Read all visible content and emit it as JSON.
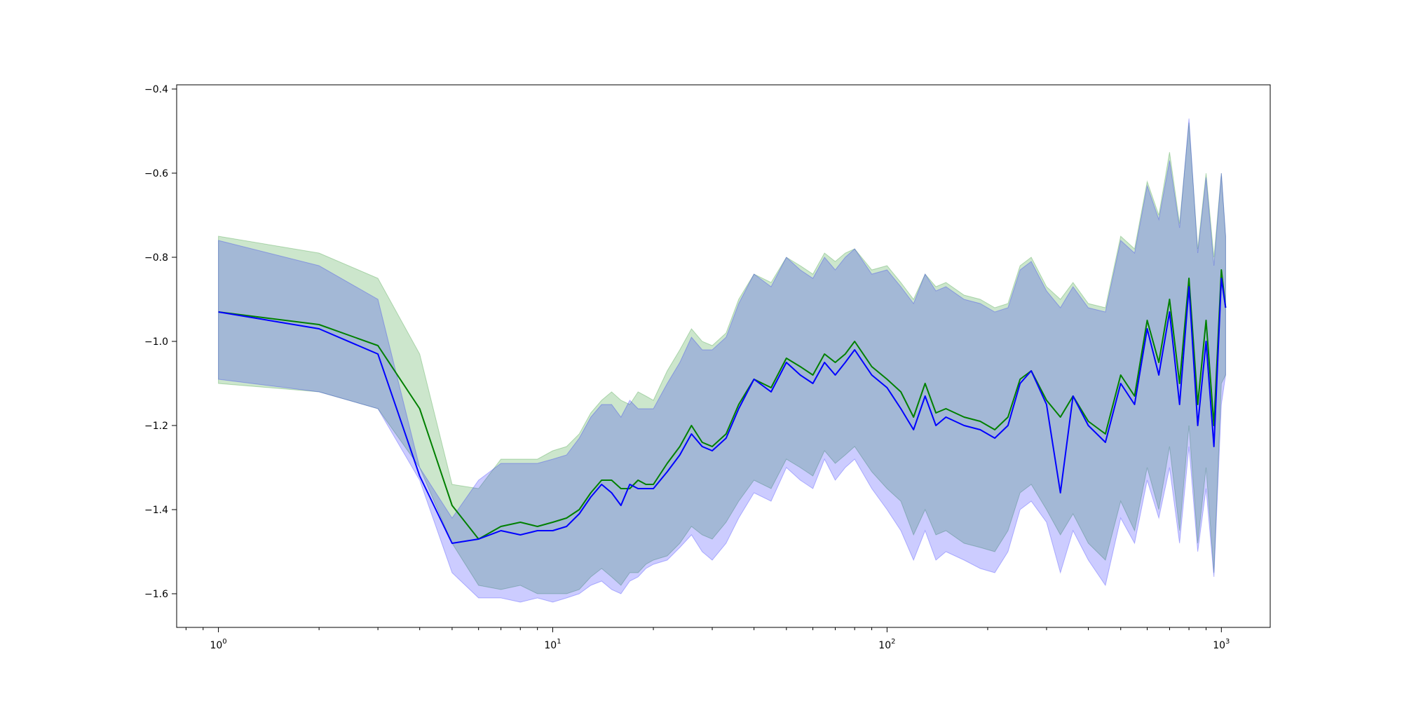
{
  "chart_data": {
    "type": "line",
    "title": "",
    "xlabel": "",
    "ylabel": "",
    "xscale": "log",
    "xlim": [
      0.75,
      1400
    ],
    "ylim": [
      -1.68,
      -0.39
    ],
    "grid": false,
    "legend": "none",
    "x_ticks": [
      {
        "value": 1,
        "base": "10",
        "exp": "0"
      },
      {
        "value": 10,
        "base": "10",
        "exp": "1"
      },
      {
        "value": 100,
        "base": "10",
        "exp": "2"
      },
      {
        "value": 1000,
        "base": "10",
        "exp": "3"
      }
    ],
    "y_ticks": [
      {
        "value": -0.4,
        "label": "−0.4"
      },
      {
        "value": -0.6,
        "label": "−0.6"
      },
      {
        "value": -0.8,
        "label": "−0.8"
      },
      {
        "value": -1.0,
        "label": "−1.0"
      },
      {
        "value": -1.2,
        "label": "−1.2"
      },
      {
        "value": -1.4,
        "label": "−1.4"
      },
      {
        "value": -1.6,
        "label": "−1.6"
      }
    ],
    "series": [
      {
        "color": "#008000",
        "band_color": "#008000",
        "x": [
          1,
          2,
          3,
          4,
          5,
          6,
          7,
          8,
          9,
          10,
          11,
          12,
          13,
          14,
          15,
          16,
          17,
          18,
          19,
          20,
          22,
          24,
          26,
          28,
          30,
          33,
          36,
          40,
          45,
          50,
          55,
          60,
          65,
          70,
          75,
          80,
          90,
          100,
          110,
          120,
          130,
          140,
          150,
          170,
          190,
          210,
          230,
          250,
          270,
          300,
          330,
          360,
          400,
          450,
          500,
          550,
          600,
          650,
          700,
          750,
          800,
          850,
          900,
          950,
          1000,
          1030
        ],
        "y": [
          -0.93,
          -0.96,
          -1.01,
          -1.16,
          -1.39,
          -1.47,
          -1.44,
          -1.43,
          -1.44,
          -1.43,
          -1.42,
          -1.4,
          -1.36,
          -1.33,
          -1.33,
          -1.35,
          -1.35,
          -1.33,
          -1.34,
          -1.34,
          -1.29,
          -1.25,
          -1.2,
          -1.24,
          -1.25,
          -1.22,
          -1.15,
          -1.09,
          -1.11,
          -1.04,
          -1.06,
          -1.08,
          -1.03,
          -1.05,
          -1.03,
          -1.0,
          -1.06,
          -1.09,
          -1.12,
          -1.18,
          -1.1,
          -1.17,
          -1.16,
          -1.18,
          -1.19,
          -1.21,
          -1.18,
          -1.09,
          -1.07,
          -1.14,
          -1.18,
          -1.13,
          -1.19,
          -1.22,
          -1.08,
          -1.13,
          -0.95,
          -1.05,
          -0.9,
          -1.1,
          -0.85,
          -1.15,
          -0.95,
          -1.2,
          -0.83,
          -0.92
        ],
        "lower": [
          -1.1,
          -1.12,
          -1.16,
          -1.3,
          -1.48,
          -1.58,
          -1.59,
          -1.58,
          -1.6,
          -1.6,
          -1.6,
          -1.59,
          -1.56,
          -1.54,
          -1.56,
          -1.58,
          -1.55,
          -1.55,
          -1.53,
          -1.52,
          -1.51,
          -1.48,
          -1.44,
          -1.46,
          -1.47,
          -1.43,
          -1.38,
          -1.33,
          -1.35,
          -1.28,
          -1.3,
          -1.32,
          -1.26,
          -1.29,
          -1.27,
          -1.25,
          -1.31,
          -1.35,
          -1.38,
          -1.46,
          -1.4,
          -1.46,
          -1.45,
          -1.48,
          -1.49,
          -1.5,
          -1.45,
          -1.36,
          -1.34,
          -1.4,
          -1.46,
          -1.41,
          -1.48,
          -1.52,
          -1.38,
          -1.45,
          -1.3,
          -1.4,
          -1.25,
          -1.45,
          -1.2,
          -1.48,
          -1.3,
          -1.55,
          -1.1,
          -1.08
        ],
        "upper": [
          -0.75,
          -0.79,
          -0.85,
          -1.03,
          -1.34,
          -1.35,
          -1.28,
          -1.28,
          -1.28,
          -1.26,
          -1.25,
          -1.22,
          -1.17,
          -1.14,
          -1.12,
          -1.14,
          -1.15,
          -1.12,
          -1.13,
          -1.14,
          -1.07,
          -1.02,
          -0.97,
          -1.0,
          -1.01,
          -0.98,
          -0.9,
          -0.84,
          -0.86,
          -0.8,
          -0.82,
          -0.84,
          -0.79,
          -0.81,
          -0.79,
          -0.78,
          -0.83,
          -0.82,
          -0.86,
          -0.9,
          -0.84,
          -0.87,
          -0.86,
          -0.89,
          -0.9,
          -0.92,
          -0.91,
          -0.82,
          -0.8,
          -0.87,
          -0.9,
          -0.86,
          -0.91,
          -0.92,
          -0.75,
          -0.78,
          -0.62,
          -0.7,
          -0.55,
          -0.72,
          -0.48,
          -0.78,
          -0.6,
          -0.8,
          -0.6,
          -0.75
        ]
      },
      {
        "color": "#0000ff",
        "band_color": "#0000ff",
        "x": [
          1,
          2,
          3,
          4,
          5,
          6,
          7,
          8,
          9,
          10,
          11,
          12,
          13,
          14,
          15,
          16,
          17,
          18,
          19,
          20,
          22,
          24,
          26,
          28,
          30,
          33,
          36,
          40,
          45,
          50,
          55,
          60,
          65,
          70,
          75,
          80,
          90,
          100,
          110,
          120,
          130,
          140,
          150,
          170,
          190,
          210,
          230,
          250,
          270,
          300,
          330,
          360,
          400,
          450,
          500,
          550,
          600,
          650,
          700,
          750,
          800,
          850,
          900,
          950,
          1000,
          1030
        ],
        "y": [
          -0.93,
          -0.97,
          -1.03,
          -1.32,
          -1.48,
          -1.47,
          -1.45,
          -1.46,
          -1.45,
          -1.45,
          -1.44,
          -1.41,
          -1.37,
          -1.34,
          -1.36,
          -1.39,
          -1.34,
          -1.35,
          -1.35,
          -1.35,
          -1.31,
          -1.27,
          -1.22,
          -1.25,
          -1.26,
          -1.23,
          -1.16,
          -1.09,
          -1.12,
          -1.05,
          -1.08,
          -1.1,
          -1.05,
          -1.08,
          -1.05,
          -1.02,
          -1.08,
          -1.11,
          -1.16,
          -1.21,
          -1.13,
          -1.2,
          -1.18,
          -1.2,
          -1.21,
          -1.23,
          -1.2,
          -1.1,
          -1.07,
          -1.15,
          -1.36,
          -1.13,
          -1.2,
          -1.24,
          -1.1,
          -1.15,
          -0.97,
          -1.08,
          -0.93,
          -1.15,
          -0.87,
          -1.2,
          -1.0,
          -1.25,
          -0.85,
          -0.92
        ],
        "lower": [
          -1.09,
          -1.12,
          -1.16,
          -1.33,
          -1.55,
          -1.61,
          -1.61,
          -1.62,
          -1.61,
          -1.62,
          -1.61,
          -1.6,
          -1.58,
          -1.57,
          -1.59,
          -1.6,
          -1.57,
          -1.56,
          -1.54,
          -1.53,
          -1.52,
          -1.49,
          -1.46,
          -1.5,
          -1.52,
          -1.48,
          -1.42,
          -1.36,
          -1.38,
          -1.3,
          -1.33,
          -1.35,
          -1.28,
          -1.33,
          -1.3,
          -1.28,
          -1.35,
          -1.4,
          -1.45,
          -1.52,
          -1.45,
          -1.52,
          -1.5,
          -1.52,
          -1.54,
          -1.55,
          -1.5,
          -1.4,
          -1.38,
          -1.43,
          -1.55,
          -1.45,
          -1.52,
          -1.58,
          -1.42,
          -1.48,
          -1.33,
          -1.42,
          -1.3,
          -1.48,
          -1.25,
          -1.5,
          -1.35,
          -1.56,
          -1.15,
          -1.08
        ],
        "upper": [
          -0.76,
          -0.82,
          -0.9,
          -1.3,
          -1.42,
          -1.33,
          -1.29,
          -1.29,
          -1.29,
          -1.28,
          -1.27,
          -1.23,
          -1.18,
          -1.15,
          -1.15,
          -1.18,
          -1.14,
          -1.16,
          -1.16,
          -1.16,
          -1.1,
          -1.05,
          -0.99,
          -1.02,
          -1.02,
          -0.99,
          -0.91,
          -0.84,
          -0.87,
          -0.8,
          -0.83,
          -0.85,
          -0.8,
          -0.83,
          -0.8,
          -0.78,
          -0.84,
          -0.83,
          -0.87,
          -0.91,
          -0.84,
          -0.88,
          -0.87,
          -0.9,
          -0.91,
          -0.93,
          -0.92,
          -0.83,
          -0.81,
          -0.88,
          -0.92,
          -0.87,
          -0.92,
          -0.93,
          -0.76,
          -0.79,
          -0.63,
          -0.71,
          -0.57,
          -0.73,
          -0.47,
          -0.79,
          -0.61,
          -0.82,
          -0.6,
          -0.75
        ]
      }
    ]
  }
}
